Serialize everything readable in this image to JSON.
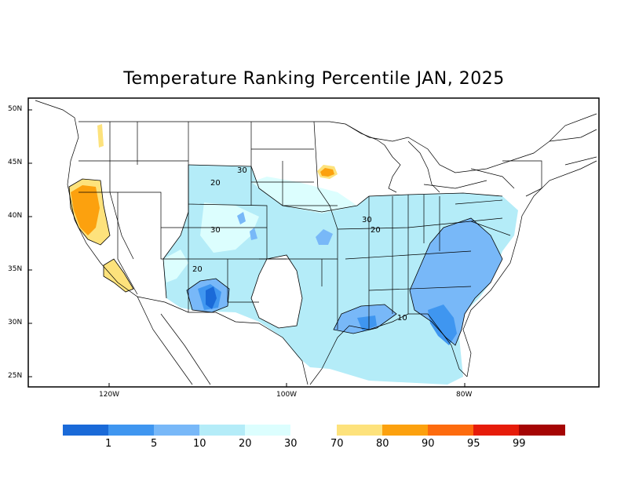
{
  "title": "Temperature Ranking Percentile JAN, 2025",
  "lat_labels": [
    "50N",
    "45N",
    "40N",
    "35N",
    "30N",
    "25N"
  ],
  "lon_labels": [
    "120W",
    "100W",
    "80W"
  ],
  "contour_labels": [
    "30",
    "20",
    "30",
    "20",
    "30",
    "20",
    "10"
  ],
  "legend": {
    "cold": {
      "colors": [
        "#1a6ad8",
        "#3f96f0",
        "#78b8f8",
        "#b4ecf8",
        "#dcfefe"
      ],
      "labels": [
        "1",
        "5",
        "10",
        "20",
        "30"
      ]
    },
    "warm": {
      "colors": [
        "#fde27c",
        "#fca10e",
        "#fd6b0e",
        "#e61c0a",
        "#a50504"
      ],
      "labels": [
        "70",
        "80",
        "90",
        "95",
        "99"
      ]
    }
  }
}
